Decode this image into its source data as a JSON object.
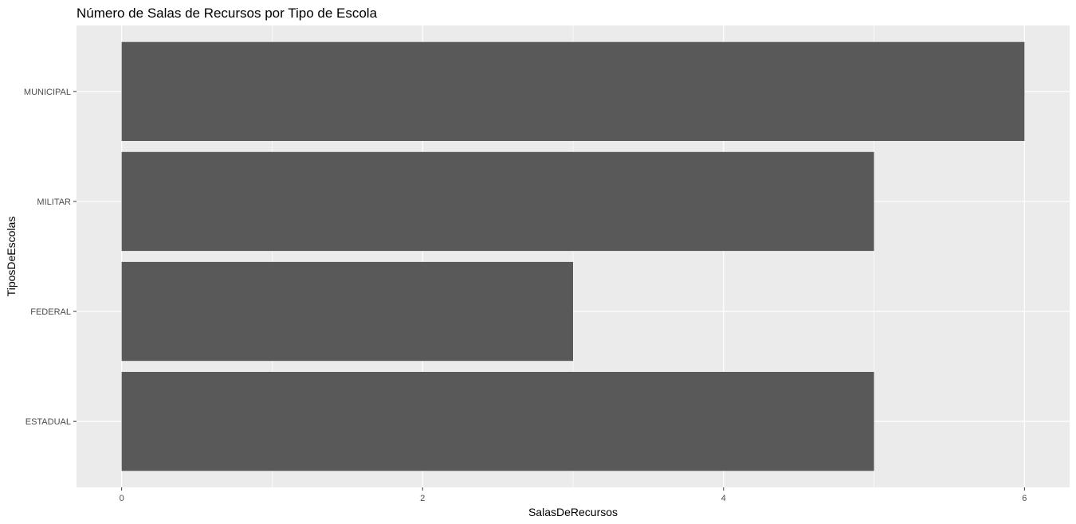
{
  "chart_data": {
    "type": "bar",
    "orientation": "horizontal",
    "title": "Número de Salas de Recursos por Tipo de Escola",
    "xlabel": "SalasDeRecursos",
    "ylabel": "TiposDeEscolas",
    "categories": [
      "ESTADUAL",
      "FEDERAL",
      "MILITAR",
      "MUNICIPAL"
    ],
    "values": [
      5,
      3,
      5,
      6
    ],
    "xlim": [
      -0.3,
      6.3
    ],
    "x_ticks": [
      0,
      2,
      4,
      6
    ],
    "x_tick_labels": [
      "0",
      "2",
      "4",
      "6"
    ],
    "grid": true,
    "colors": {
      "panel_background": "#ebebeb",
      "grid_major": "#ffffff",
      "bar_fill": "#595959",
      "tick_mark": "#333333"
    }
  }
}
